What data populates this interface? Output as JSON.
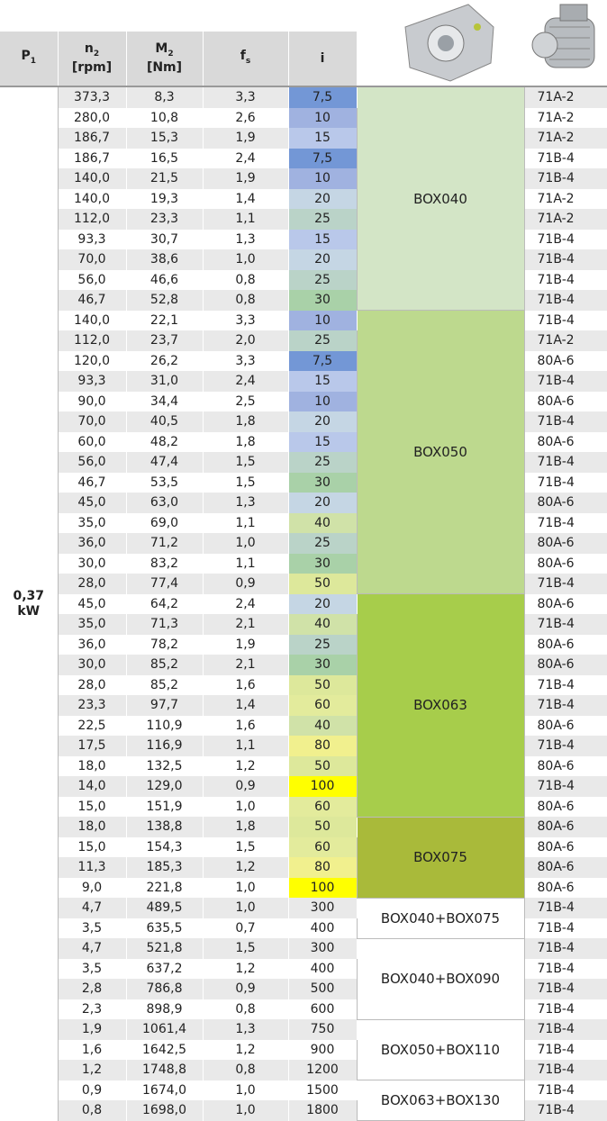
{
  "header": {
    "p1": "P",
    "p1_sub": "1",
    "n2": "n",
    "n2_sub": "2",
    "n2_unit": "[rpm]",
    "m2": "M",
    "m2_sub": "2",
    "m2_unit": "[Nm]",
    "fs": "f",
    "fs_sub": "s",
    "i": "i"
  },
  "power": "0,37",
  "power_unit": "kW",
  "groups": [
    {
      "box": "BOX040",
      "color": "#d3e5c6",
      "rows": [
        {
          "n2": "373,3",
          "m2": "8,3",
          "fs": "3,3",
          "i": "7,5",
          "i_color": "#7397d6",
          "motor": "71A-2"
        },
        {
          "n2": "280,0",
          "m2": "10,8",
          "fs": "2,6",
          "i": "10",
          "i_color": "#a0b2e0",
          "motor": "71A-2"
        },
        {
          "n2": "186,7",
          "m2": "15,3",
          "fs": "1,9",
          "i": "15",
          "i_color": "#b9c8ea",
          "motor": "71A-2"
        },
        {
          "n2": "186,7",
          "m2": "16,5",
          "fs": "2,4",
          "i": "7,5",
          "i_color": "#7397d6",
          "motor": "71B-4"
        },
        {
          "n2": "140,0",
          "m2": "21,5",
          "fs": "1,9",
          "i": "10",
          "i_color": "#a0b2e0",
          "motor": "71B-4"
        },
        {
          "n2": "140,0",
          "m2": "19,3",
          "fs": "1,4",
          "i": "20",
          "i_color": "#c5d6e4",
          "motor": "71A-2"
        },
        {
          "n2": "112,0",
          "m2": "23,3",
          "fs": "1,1",
          "i": "25",
          "i_color": "#bad3c8",
          "motor": "71A-2"
        },
        {
          "n2": "93,3",
          "m2": "30,7",
          "fs": "1,3",
          "i": "15",
          "i_color": "#b9c8ea",
          "motor": "71B-4"
        },
        {
          "n2": "70,0",
          "m2": "38,6",
          "fs": "1,0",
          "i": "20",
          "i_color": "#c5d6e4",
          "motor": "71B-4"
        },
        {
          "n2": "56,0",
          "m2": "46,6",
          "fs": "0,8",
          "i": "25",
          "i_color": "#bad3c8",
          "motor": "71B-4"
        },
        {
          "n2": "46,7",
          "m2": "52,8",
          "fs": "0,8",
          "i": "30",
          "i_color": "#a9d1a8",
          "motor": "71B-4"
        }
      ]
    },
    {
      "box": "BOX050",
      "color": "#bdd98e",
      "rows": [
        {
          "n2": "140,0",
          "m2": "22,1",
          "fs": "3,3",
          "i": "10",
          "i_color": "#a0b2e0",
          "motor": "71B-4"
        },
        {
          "n2": "112,0",
          "m2": "23,7",
          "fs": "2,0",
          "i": "25",
          "i_color": "#bad3c8",
          "motor": "71A-2"
        },
        {
          "n2": "120,0",
          "m2": "26,2",
          "fs": "3,3",
          "i": "7,5",
          "i_color": "#7397d6",
          "motor": "80A-6"
        },
        {
          "n2": "93,3",
          "m2": "31,0",
          "fs": "2,4",
          "i": "15",
          "i_color": "#b9c8ea",
          "motor": "71B-4"
        },
        {
          "n2": "90,0",
          "m2": "34,4",
          "fs": "2,5",
          "i": "10",
          "i_color": "#a0b2e0",
          "motor": "80A-6"
        },
        {
          "n2": "70,0",
          "m2": "40,5",
          "fs": "1,8",
          "i": "20",
          "i_color": "#c5d6e4",
          "motor": "71B-4"
        },
        {
          "n2": "60,0",
          "m2": "48,2",
          "fs": "1,8",
          "i": "15",
          "i_color": "#b9c8ea",
          "motor": "80A-6"
        },
        {
          "n2": "56,0",
          "m2": "47,4",
          "fs": "1,5",
          "i": "25",
          "i_color": "#bad3c8",
          "motor": "71B-4"
        },
        {
          "n2": "46,7",
          "m2": "53,5",
          "fs": "1,5",
          "i": "30",
          "i_color": "#a9d1a8",
          "motor": "71B-4"
        },
        {
          "n2": "45,0",
          "m2": "63,0",
          "fs": "1,3",
          "i": "20",
          "i_color": "#c5d6e4",
          "motor": "80A-6"
        },
        {
          "n2": "35,0",
          "m2": "69,0",
          "fs": "1,1",
          "i": "40",
          "i_color": "#d0e2a8",
          "motor": "71B-4"
        },
        {
          "n2": "36,0",
          "m2": "71,2",
          "fs": "1,0",
          "i": "25",
          "i_color": "#bad3c8",
          "motor": "80A-6"
        },
        {
          "n2": "30,0",
          "m2": "83,2",
          "fs": "1,1",
          "i": "30",
          "i_color": "#a9d1a8",
          "motor": "80A-6"
        },
        {
          "n2": "28,0",
          "m2": "77,4",
          "fs": "0,9",
          "i": "50",
          "i_color": "#dde89b",
          "motor": "71B-4"
        }
      ]
    },
    {
      "box": "BOX063",
      "color": "#a7cd4b",
      "rows": [
        {
          "n2": "45,0",
          "m2": "64,2",
          "fs": "2,4",
          "i": "20",
          "i_color": "#c5d6e4",
          "motor": "80A-6"
        },
        {
          "n2": "35,0",
          "m2": "71,3",
          "fs": "2,1",
          "i": "40",
          "i_color": "#d0e2a8",
          "motor": "71B-4"
        },
        {
          "n2": "36,0",
          "m2": "78,2",
          "fs": "1,9",
          "i": "25",
          "i_color": "#bad3c8",
          "motor": "80A-6"
        },
        {
          "n2": "30,0",
          "m2": "85,2",
          "fs": "2,1",
          "i": "30",
          "i_color": "#a9d1a8",
          "motor": "80A-6"
        },
        {
          "n2": "28,0",
          "m2": "85,2",
          "fs": "1,6",
          "i": "50",
          "i_color": "#dde89b",
          "motor": "71B-4"
        },
        {
          "n2": "23,3",
          "m2": "97,7",
          "fs": "1,4",
          "i": "60",
          "i_color": "#e3eb9c",
          "motor": "71B-4"
        },
        {
          "n2": "22,5",
          "m2": "110,9",
          "fs": "1,6",
          "i": "40",
          "i_color": "#d0e2a8",
          "motor": "80A-6"
        },
        {
          "n2": "17,5",
          "m2": "116,9",
          "fs": "1,1",
          "i": "80",
          "i_color": "#f1f08e",
          "motor": "71B-4"
        },
        {
          "n2": "18,0",
          "m2": "132,5",
          "fs": "1,2",
          "i": "50",
          "i_color": "#dde89b",
          "motor": "80A-6"
        },
        {
          "n2": "14,0",
          "m2": "129,0",
          "fs": "0,9",
          "i": "100",
          "i_color": "#ffff00",
          "motor": "71B-4"
        },
        {
          "n2": "15,0",
          "m2": "151,9",
          "fs": "1,0",
          "i": "60",
          "i_color": "#e3eb9c",
          "motor": "80A-6"
        }
      ]
    },
    {
      "box": "BOX075",
      "color": "#a9ba3a",
      "rows": [
        {
          "n2": "18,0",
          "m2": "138,8",
          "fs": "1,8",
          "i": "50",
          "i_color": "#dde89b",
          "motor": "80A-6"
        },
        {
          "n2": "15,0",
          "m2": "154,3",
          "fs": "1,5",
          "i": "60",
          "i_color": "#e3eb9c",
          "motor": "80A-6"
        },
        {
          "n2": "11,3",
          "m2": "185,3",
          "fs": "1,2",
          "i": "80",
          "i_color": "#f1f08e",
          "motor": "80A-6"
        },
        {
          "n2": "9,0",
          "m2": "221,8",
          "fs": "1,0",
          "i": "100",
          "i_color": "#ffff00",
          "motor": "80A-6"
        }
      ]
    },
    {
      "box": "BOX040+BOX075",
      "color": "#ffffff",
      "rows": [
        {
          "n2": "4,7",
          "m2": "489,5",
          "fs": "1,0",
          "i": "300",
          "motor": "71B-4"
        },
        {
          "n2": "3,5",
          "m2": "635,5",
          "fs": "0,7",
          "i": "400",
          "motor": "71B-4"
        }
      ]
    },
    {
      "box": "BOX040+BOX090",
      "color": "#ffffff",
      "rows": [
        {
          "n2": "4,7",
          "m2": "521,8",
          "fs": "1,5",
          "i": "300",
          "motor": "71B-4"
        },
        {
          "n2": "3,5",
          "m2": "637,2",
          "fs": "1,2",
          "i": "400",
          "motor": "71B-4"
        },
        {
          "n2": "2,8",
          "m2": "786,8",
          "fs": "0,9",
          "i": "500",
          "motor": "71B-4"
        },
        {
          "n2": "2,3",
          "m2": "898,9",
          "fs": "0,8",
          "i": "600",
          "motor": "71B-4"
        }
      ]
    },
    {
      "box": "BOX050+BOX110",
      "color": "#ffffff",
      "rows": [
        {
          "n2": "1,9",
          "m2": "1061,4",
          "fs": "1,3",
          "i": "750",
          "motor": "71B-4"
        },
        {
          "n2": "1,6",
          "m2": "1642,5",
          "fs": "1,2",
          "i": "900",
          "motor": "71B-4"
        },
        {
          "n2": "1,2",
          "m2": "1748,8",
          "fs": "0,8",
          "i": "1200",
          "motor": "71B-4"
        }
      ]
    },
    {
      "box": "BOX063+BOX130",
      "color": "#ffffff",
      "rows": [
        {
          "n2": "0,9",
          "m2": "1674,0",
          "fs": "1,0",
          "i": "1500",
          "motor": "71B-4"
        },
        {
          "n2": "0,8",
          "m2": "1698,0",
          "fs": "1,0",
          "i": "1800",
          "motor": "71B-4"
        }
      ]
    }
  ]
}
